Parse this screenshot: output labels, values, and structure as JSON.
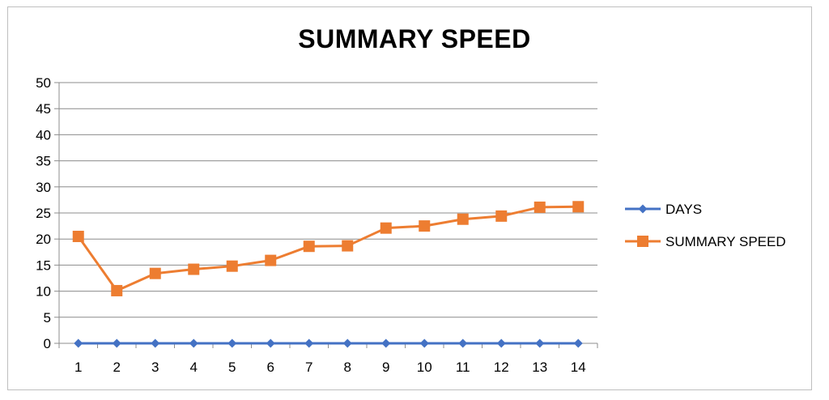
{
  "chart_data": {
    "type": "line",
    "title": "SUMMARY SPEED",
    "xlabel": "",
    "ylabel": "",
    "categories": [
      "1",
      "2",
      "3",
      "4",
      "5",
      "6",
      "7",
      "8",
      "9",
      "10",
      "11",
      "12",
      "13",
      "14"
    ],
    "ylim": [
      0,
      50
    ],
    "yticks": [
      "0",
      "5",
      "10",
      "15",
      "20",
      "25",
      "30",
      "35",
      "40",
      "45",
      "50"
    ],
    "grid": true,
    "legend_position": "right",
    "series": [
      {
        "name": "DAYS",
        "color": "#4472c4",
        "marker": "diamond",
        "values": [
          0,
          0,
          0,
          0,
          0,
          0,
          0,
          0,
          0,
          0,
          0,
          0,
          0,
          0
        ]
      },
      {
        "name": "SUMMARY SPEED",
        "color": "#ed7d31",
        "marker": "square",
        "values": [
          20.5,
          10.1,
          13.4,
          14.2,
          14.8,
          15.9,
          18.6,
          18.7,
          22.1,
          22.5,
          23.8,
          24.4,
          26.1,
          26.2
        ]
      }
    ]
  }
}
